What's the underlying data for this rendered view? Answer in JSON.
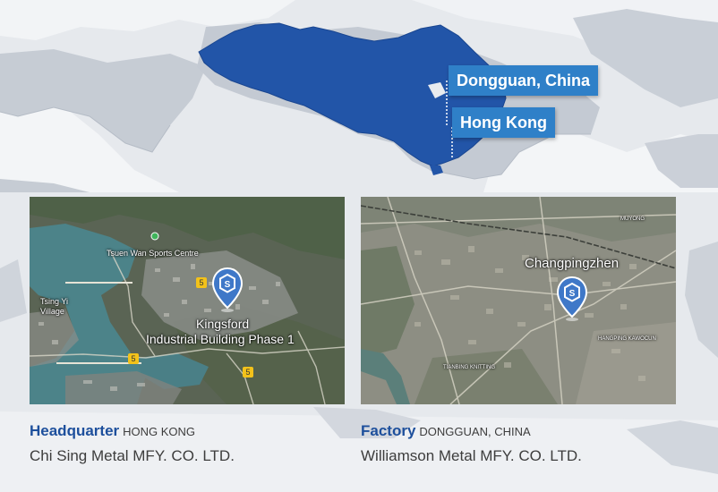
{
  "map": {
    "labels": {
      "dongguan": "Dongguan, China",
      "hongkong": "Hong Kong"
    }
  },
  "hq_panel": {
    "place_labels": {
      "sports_centre": "Tsuen Wan Sports Centre",
      "village": "Tsing Yi Village",
      "building_line1": "Kingsford",
      "building_line2": "Industrial Building Phase 1"
    },
    "route_badges": [
      "5",
      "5",
      "5"
    ],
    "caption": {
      "title": "Headquarter",
      "subtitle": "HONG KONG",
      "company": "Chi Sing Metal MFY. CO. LTD."
    }
  },
  "factory_panel": {
    "place_labels": {
      "town": "Changpingzhen",
      "small_1": "HANGPING KAWOCUN",
      "small_2": "TIANBING KNITTING",
      "small_3": "MUYONG"
    },
    "caption": {
      "title": "Factory",
      "subtitle": "DONGGUAN, CHINA",
      "company": "Williamson Metal MFY. CO. LTD."
    }
  },
  "colors": {
    "china_fill": "#2255a8",
    "label_bg": "#2f80c8",
    "caption_accent": "#1d4f9c",
    "pin_blue": "#3f78c8"
  }
}
